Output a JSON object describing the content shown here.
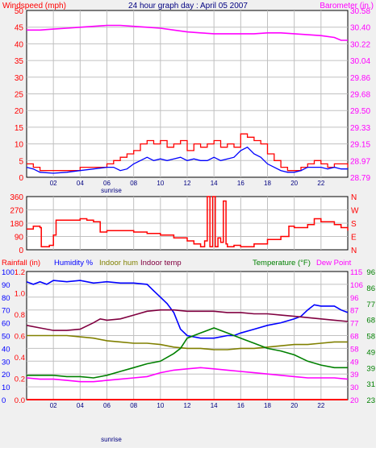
{
  "colors": {
    "background": "#F0F0F0",
    "plot_bg": "#FFFFFF",
    "grid": "#C0C0C0",
    "frame": "#000000",
    "wind": "#FF0000",
    "wind_avg": "#0000FF",
    "barometer": "#FF00FF",
    "direction": "#FF0000",
    "rain": "#FF0000",
    "humidity": "#0000FF",
    "indoor_hum": "#808000",
    "indoor_temp": "#800040",
    "temperature": "#008000",
    "dew_point": "#FF00FF",
    "title": "#000080",
    "hour_labels": "#000080"
  },
  "chart_data": [
    {
      "id": "wind_baro",
      "type": "line",
      "title": "24 hour graph day : April 05 2007",
      "y_left_label": "Windspeed (mph)",
      "y_right_label": "Barometer (in.)",
      "y_left_ticks": [
        "50",
        "45",
        "40",
        "35",
        "30",
        "25",
        "20",
        "15",
        "10",
        "5",
        "0"
      ],
      "y_right_ticks": [
        "30.58",
        "30.40",
        "30.22",
        "30.04",
        "29.86",
        "29.68",
        "29.50",
        "29.33",
        "29.15",
        "28.97",
        "28.79"
      ],
      "ylim_left": [
        0,
        50
      ],
      "ylim_right": [
        28.79,
        30.58
      ],
      "xlim": [
        0,
        24
      ],
      "x_ticks": [
        "02",
        "04",
        "06",
        "08",
        "10",
        "12",
        "14",
        "16",
        "18",
        "20",
        "22"
      ],
      "x_tick_hours": [
        2,
        4,
        6,
        8,
        10,
        12,
        14,
        16,
        18,
        20,
        22
      ],
      "annotation": "sunrise",
      "annotation_hour": 6.6,
      "series": [
        {
          "key": "wind_gust",
          "axis": "left",
          "x": [
            0,
            0.5,
            1,
            2,
            3,
            4,
            5,
            6,
            6.5,
            7,
            7.5,
            8,
            8.5,
            9,
            9.5,
            10,
            10.5,
            11,
            11.5,
            12,
            12.5,
            13,
            13.5,
            14,
            14.5,
            15,
            15.5,
            16,
            16.5,
            17,
            17.5,
            18,
            18.5,
            19,
            19.5,
            20,
            20.5,
            21,
            21.5,
            22,
            22.5,
            23,
            23.5,
            24
          ],
          "y": [
            4,
            3,
            2,
            2,
            2,
            3,
            3,
            4,
            5,
            6,
            7,
            8,
            10,
            11,
            10,
            11,
            9,
            10,
            11,
            8,
            10,
            9,
            10,
            11,
            9,
            10,
            9,
            13,
            12,
            11,
            10,
            7,
            5,
            3,
            2,
            2,
            3,
            4,
            5,
            4,
            3,
            4,
            4,
            3
          ]
        },
        {
          "key": "wind_avg",
          "axis": "left",
          "x": [
            0,
            0.5,
            1,
            2,
            3,
            4,
            5,
            6,
            6.5,
            7,
            7.5,
            8,
            8.5,
            9,
            9.5,
            10,
            10.5,
            11,
            11.5,
            12,
            12.5,
            13,
            13.5,
            14,
            14.5,
            15,
            15.5,
            16,
            16.5,
            17,
            17.5,
            18,
            18.5,
            19,
            19.5,
            20,
            20.5,
            21,
            21.5,
            22,
            22.5,
            23,
            23.5,
            24
          ],
          "y": [
            3,
            2.5,
            1.5,
            1.2,
            1.5,
            2,
            2.5,
            3,
            3,
            2,
            2.5,
            4,
            5,
            6,
            5,
            5.5,
            5,
            5.5,
            6,
            5,
            5.5,
            5,
            5,
            6,
            5,
            5.5,
            6,
            8,
            9,
            7,
            6,
            4,
            3,
            2,
            1.5,
            1.5,
            2,
            3,
            3,
            3,
            2.5,
            3,
            2.5,
            2.5
          ]
        },
        {
          "key": "barometer",
          "axis": "right",
          "x": [
            0,
            1,
            2,
            3,
            4,
            5,
            6,
            7,
            8,
            9,
            10,
            11,
            12,
            13,
            14,
            15,
            16,
            17,
            18,
            19,
            20,
            21,
            22,
            23,
            23.5,
            24
          ],
          "y": [
            30.37,
            30.37,
            30.38,
            30.39,
            30.4,
            30.41,
            30.42,
            30.42,
            30.41,
            30.4,
            30.39,
            30.37,
            30.35,
            30.34,
            30.33,
            30.33,
            30.33,
            30.33,
            30.34,
            30.34,
            30.33,
            30.32,
            30.31,
            30.29,
            30.26,
            30.26
          ]
        }
      ]
    },
    {
      "id": "wind_dir",
      "type": "line",
      "y_left_ticks": [
        "360",
        "270",
        "180",
        "90",
        "0"
      ],
      "y_right_ticks": [
        "N",
        "W",
        "S",
        "E",
        "N"
      ],
      "ylim": [
        0,
        360
      ],
      "xlim": [
        0,
        24
      ],
      "series": [
        {
          "key": "direction",
          "x": [
            0,
            0.5,
            1,
            1.1,
            1.7,
            2,
            2.2,
            3,
            4,
            4.5,
            5,
            5.5,
            6,
            7,
            8,
            9,
            10,
            11,
            12,
            12.5,
            13,
            13.3,
            13.5,
            13.7,
            13.9,
            14.1,
            14.3,
            14.5,
            14.7,
            14.9,
            15,
            15.5,
            16,
            17,
            18,
            19,
            19.4,
            19.6,
            20,
            21,
            21.5,
            22,
            23,
            23.5,
            24
          ],
          "y": [
            140,
            160,
            150,
            20,
            30,
            100,
            200,
            200,
            210,
            200,
            190,
            120,
            130,
            130,
            120,
            110,
            100,
            80,
            60,
            40,
            20,
            60,
            360,
            20,
            360,
            20,
            80,
            50,
            330,
            40,
            20,
            30,
            20,
            40,
            70,
            90,
            90,
            160,
            150,
            170,
            210,
            190,
            170,
            150,
            130
          ]
        }
      ]
    },
    {
      "id": "temp_hum",
      "type": "line",
      "header_labels": [
        "Rainfall (in)",
        "Humidity %",
        "Indoor hum",
        "Indoor temp",
        "Temperature (°F)",
        "Dew Point"
      ],
      "y_rain_ticks": [
        "1.2",
        "1.0",
        "0.8",
        "0.6",
        "0.4",
        "0.2",
        "0.0"
      ],
      "y_hum_ticks": [
        "100",
        "90",
        "80",
        "70",
        "60",
        "50",
        "40",
        "30",
        "20",
        "10",
        "0"
      ],
      "y_temp_ticks_a": [
        "115",
        "106",
        "96",
        "87",
        "77",
        "68",
        "58",
        "49",
        "39",
        "30",
        "20"
      ],
      "y_temp_ticks_b": [
        "96",
        "86",
        "77",
        "68",
        "58",
        "49",
        "39",
        "31",
        "23"
      ],
      "ylim_hum": [
        0,
        100
      ],
      "ylim_temp": [
        20,
        115
      ],
      "xlim": [
        0,
        24
      ],
      "series": [
        {
          "key": "humidity",
          "axis": "hum",
          "x": [
            0,
            0.5,
            1,
            1.5,
            2,
            3,
            4,
            5,
            6,
            7,
            8,
            9,
            9.5,
            10,
            10.5,
            11,
            11.5,
            12,
            13,
            14,
            15,
            15.5,
            16,
            17,
            18,
            19,
            20,
            20.5,
            21,
            21.5,
            22,
            23,
            23.5,
            24
          ],
          "y": [
            92,
            90,
            92,
            90,
            93,
            92,
            93,
            91,
            92,
            91,
            91,
            90,
            85,
            80,
            75,
            68,
            55,
            50,
            48,
            48,
            50,
            50,
            52,
            55,
            58,
            60,
            63,
            65,
            70,
            74,
            73,
            73,
            70,
            68
          ]
        },
        {
          "key": "indoor_hum",
          "axis": "hum",
          "x": [
            0,
            1,
            2,
            3,
            4,
            5,
            6,
            7,
            8,
            9,
            10,
            11,
            12,
            13,
            14,
            15,
            16,
            17,
            18,
            19,
            20,
            21,
            22,
            23,
            24
          ],
          "y": [
            50,
            50,
            50,
            50,
            49,
            48,
            46,
            45,
            44,
            44,
            43,
            41,
            40,
            40,
            39,
            39,
            40,
            40,
            41,
            42,
            43,
            43,
            44,
            45,
            45
          ]
        },
        {
          "key": "dew_point",
          "axis": "hum",
          "x": [
            0,
            1,
            2,
            3,
            4,
            5,
            6,
            7,
            8,
            9,
            10,
            11,
            12,
            13,
            14,
            15,
            16,
            17,
            18,
            19,
            20,
            21,
            22,
            23,
            24
          ],
          "y": [
            17,
            16,
            16,
            15,
            14,
            14,
            15,
            16,
            17,
            18,
            21,
            23,
            24,
            25,
            24,
            23,
            22,
            21,
            20,
            19,
            18,
            17,
            17,
            17,
            16
          ]
        },
        {
          "key": "indoor_temp",
          "axis": "hum",
          "x": [
            0,
            1,
            2,
            3,
            4,
            5,
            5.5,
            6,
            7,
            8,
            9,
            10,
            11,
            12,
            13,
            14,
            15,
            16,
            17,
            18,
            19,
            20,
            21,
            22,
            23,
            24
          ],
          "y": [
            58,
            56,
            54,
            54,
            55,
            60,
            63,
            62,
            63,
            66,
            69,
            70,
            70,
            69,
            69,
            69,
            68,
            68,
            67,
            67,
            66,
            65,
            64,
            63,
            62,
            61
          ]
        },
        {
          "key": "temperature",
          "axis": "hum",
          "x": [
            0,
            1,
            2,
            3,
            4,
            5,
            6,
            7,
            8,
            9,
            10,
            11,
            11.5,
            12,
            13,
            14,
            15,
            16,
            17,
            18,
            19,
            20,
            21,
            22,
            23,
            24
          ],
          "y": [
            19,
            19,
            19,
            18,
            18,
            17,
            19,
            22,
            25,
            28,
            30,
            36,
            40,
            48,
            52,
            56,
            52,
            48,
            44,
            40,
            38,
            35,
            30,
            27,
            25,
            25
          ]
        },
        {
          "key": "rainfall",
          "axis": "hum",
          "x": [
            0,
            24
          ],
          "y": [
            0,
            0
          ]
        }
      ]
    }
  ]
}
